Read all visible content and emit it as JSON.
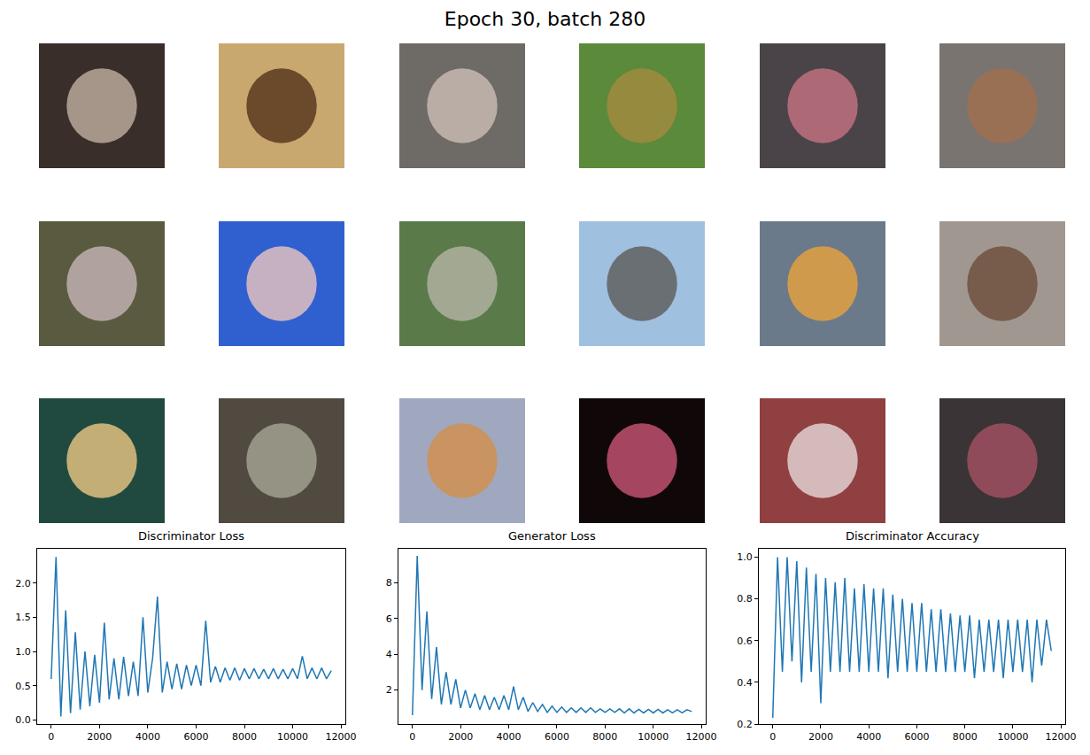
{
  "title": "Epoch 30, batch 280",
  "images": [
    {
      "colors": [
        "#3a2e2a",
        "#b8a89a"
      ]
    },
    {
      "colors": [
        "#c9a870",
        "#5a3a20"
      ]
    },
    {
      "colors": [
        "#6e6a66",
        "#c8b8b0"
      ]
    },
    {
      "colors": [
        "#5a8a3a",
        "#a08a40"
      ]
    },
    {
      "colors": [
        "#4a4448",
        "#c07080"
      ]
    },
    {
      "colors": [
        "#7a7470",
        "#a07050"
      ]
    },
    {
      "colors": [
        "#5a5a40",
        "#c0b0b0"
      ]
    },
    {
      "colors": [
        "#3060d0",
        "#e0c0c0"
      ]
    },
    {
      "colors": [
        "#5a7a4a",
        "#b0b0a0"
      ]
    },
    {
      "colors": [
        "#a0c0e0",
        "#606060"
      ]
    },
    {
      "colors": [
        "#6a7a8a",
        "#e0a040"
      ]
    },
    {
      "colors": [
        "#a09890",
        "#705040"
      ]
    },
    {
      "colors": [
        "#204a40",
        "#e0c080"
      ]
    },
    {
      "colors": [
        "#504a40",
        "#a0a090"
      ]
    },
    {
      "colors": [
        "#a0a8c0",
        "#d09050"
      ]
    },
    {
      "colors": [
        "#100808",
        "#c05070"
      ]
    },
    {
      "colors": [
        "#904040",
        "#e0d0d0"
      ]
    },
    {
      "colors": [
        "#3a3436",
        "#a05060"
      ]
    }
  ],
  "chart_data": [
    {
      "type": "line",
      "title": "Discriminator Loss",
      "color": "#1f77b4",
      "grid": false,
      "x": [
        0,
        200,
        400,
        600,
        800,
        1000,
        1200,
        1400,
        1600,
        1800,
        2000,
        2200,
        2400,
        2600,
        2800,
        3000,
        3200,
        3400,
        3600,
        3800,
        4000,
        4200,
        4400,
        4600,
        4800,
        5000,
        5200,
        5400,
        5600,
        5800,
        6000,
        6200,
        6400,
        6600,
        6800,
        7000,
        7200,
        7400,
        7600,
        7800,
        8000,
        8200,
        8400,
        8600,
        8800,
        9000,
        9200,
        9400,
        9600,
        9800,
        10000,
        10200,
        10400,
        10600,
        10800,
        11000,
        11200,
        11400,
        11600
      ],
      "values": [
        0.6,
        2.38,
        0.05,
        1.6,
        0.1,
        1.28,
        0.15,
        1.0,
        0.2,
        0.95,
        0.25,
        1.42,
        0.3,
        0.9,
        0.3,
        0.92,
        0.35,
        0.85,
        0.35,
        1.5,
        0.4,
        0.9,
        1.8,
        0.4,
        0.85,
        0.45,
        0.82,
        0.45,
        0.8,
        0.5,
        0.8,
        0.5,
        1.45,
        0.55,
        0.78,
        0.55,
        0.76,
        0.58,
        0.76,
        0.58,
        0.75,
        0.6,
        0.75,
        0.6,
        0.74,
        0.6,
        0.75,
        0.6,
        0.74,
        0.6,
        0.75,
        0.6,
        0.93,
        0.6,
        0.76,
        0.6,
        0.76,
        0.6,
        0.72
      ],
      "xlim": [
        -580,
        12180
      ],
      "xticks": [
        0,
        2000,
        4000,
        6000,
        8000,
        10000,
        12000
      ],
      "ylim": [
        -0.06,
        2.5
      ],
      "yticks": [
        {
          "value": 0,
          "label": "0.0"
        },
        {
          "value": 0.5,
          "label": "0.5"
        },
        {
          "value": 1,
          "label": "1.0"
        },
        {
          "value": 1.5,
          "label": "1.5"
        },
        {
          "value": 2,
          "label": "2.0"
        }
      ]
    },
    {
      "type": "line",
      "title": "Generator Loss",
      "color": "#1f77b4",
      "grid": false,
      "x": [
        0,
        200,
        400,
        600,
        800,
        1000,
        1200,
        1400,
        1600,
        1800,
        2000,
        2200,
        2400,
        2600,
        2800,
        3000,
        3200,
        3400,
        3600,
        3800,
        4000,
        4200,
        4400,
        4600,
        4800,
        5000,
        5200,
        5400,
        5600,
        5800,
        6000,
        6200,
        6400,
        6600,
        6800,
        7000,
        7200,
        7400,
        7600,
        7800,
        8000,
        8200,
        8400,
        8600,
        8800,
        9000,
        9200,
        9400,
        9600,
        9800,
        10000,
        10200,
        10400,
        10600,
        10800,
        11000,
        11200,
        11400,
        11600
      ],
      "values": [
        0.6,
        9.5,
        2.0,
        6.4,
        1.5,
        4.4,
        1.2,
        3.0,
        1.2,
        2.6,
        1.0,
        2.0,
        1.0,
        1.8,
        0.9,
        1.7,
        0.9,
        1.6,
        0.9,
        1.7,
        0.9,
        2.2,
        0.9,
        1.6,
        0.8,
        1.3,
        0.8,
        1.2,
        0.75,
        1.1,
        0.75,
        1.05,
        0.75,
        1.0,
        0.75,
        1.0,
        0.75,
        1.0,
        0.75,
        0.95,
        0.75,
        0.95,
        0.75,
        0.95,
        0.72,
        0.95,
        0.72,
        0.92,
        0.72,
        0.92,
        0.72,
        0.92,
        0.72,
        0.9,
        0.72,
        0.9,
        0.72,
        0.9,
        0.8
      ],
      "xlim": [
        -580,
        12180
      ],
      "xticks": [
        0,
        2000,
        4000,
        6000,
        8000,
        10000,
        12000
      ],
      "ylim": [
        0.1,
        9.9
      ],
      "yticks": [
        2,
        4,
        6,
        8
      ]
    },
    {
      "type": "line",
      "title": "Discriminator Accuracy",
      "color": "#1f77b4",
      "grid": false,
      "x": [
        0,
        200,
        400,
        600,
        800,
        1000,
        1200,
        1400,
        1600,
        1800,
        2000,
        2200,
        2400,
        2600,
        2800,
        3000,
        3200,
        3400,
        3600,
        3800,
        4000,
        4200,
        4400,
        4600,
        4800,
        5000,
        5200,
        5400,
        5600,
        5800,
        6000,
        6200,
        6400,
        6600,
        6800,
        7000,
        7200,
        7400,
        7600,
        7800,
        8000,
        8200,
        8400,
        8600,
        8800,
        9000,
        9200,
        9400,
        9600,
        9800,
        10000,
        10200,
        10400,
        10600,
        10800,
        11000,
        11200,
        11400,
        11600
      ],
      "values": [
        0.23,
        1.0,
        0.45,
        1.0,
        0.5,
        0.98,
        0.4,
        0.95,
        0.45,
        0.92,
        0.3,
        0.9,
        0.45,
        0.88,
        0.45,
        0.9,
        0.45,
        0.85,
        0.45,
        0.87,
        0.45,
        0.85,
        0.45,
        0.85,
        0.42,
        0.82,
        0.45,
        0.8,
        0.45,
        0.78,
        0.45,
        0.78,
        0.45,
        0.75,
        0.45,
        0.75,
        0.45,
        0.73,
        0.45,
        0.72,
        0.45,
        0.72,
        0.42,
        0.7,
        0.45,
        0.7,
        0.45,
        0.7,
        0.42,
        0.7,
        0.45,
        0.7,
        0.45,
        0.7,
        0.4,
        0.7,
        0.48,
        0.7,
        0.55
      ],
      "xlim": [
        -580,
        12180
      ],
      "xticks": [
        0,
        2000,
        4000,
        6000,
        8000,
        10000,
        12000
      ],
      "ylim": [
        0.2,
        1.04
      ],
      "yticks": [
        0.2,
        0.4,
        0.6,
        0.8,
        {
          "value": 1,
          "label": "1.0"
        }
      ]
    }
  ]
}
